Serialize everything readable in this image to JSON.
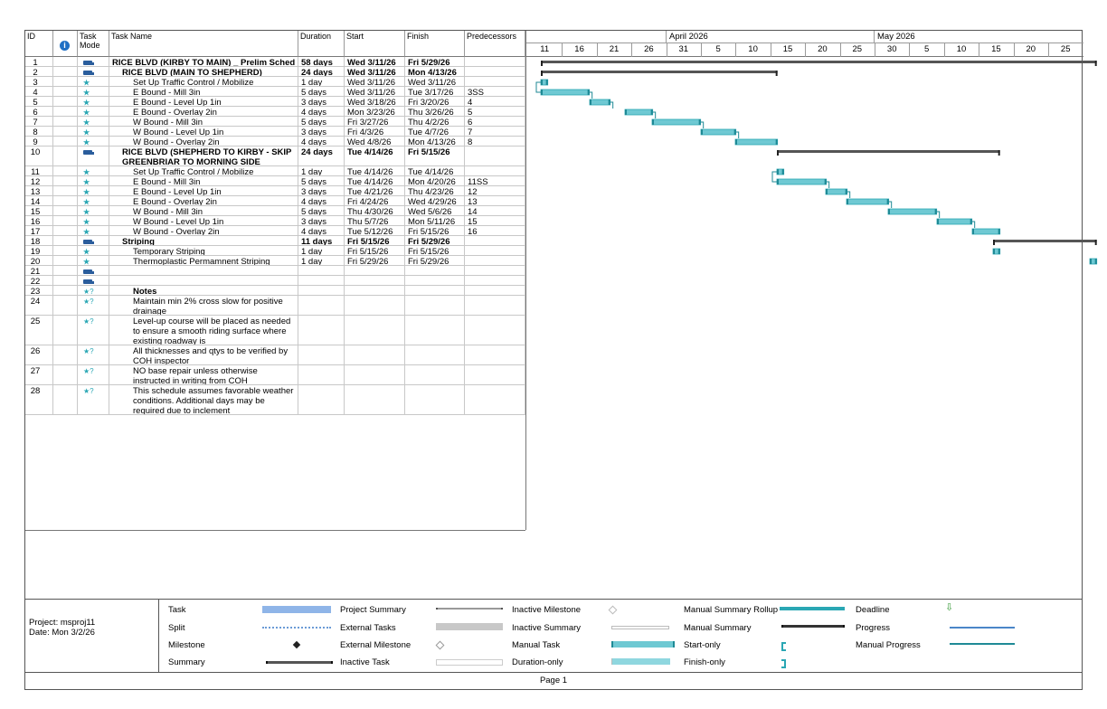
{
  "headers": {
    "id": "ID",
    "info_icon": "info-icon",
    "mode_line1": "Task",
    "mode_line2": "Mode",
    "name": "Task Name",
    "duration": "Duration",
    "start": "Start",
    "finish": "Finish",
    "predecessors": "Predecessors"
  },
  "timescale": {
    "months": [
      "April 2026",
      "May 2026"
    ],
    "days": [
      "11",
      "16",
      "21",
      "26",
      "31",
      "5",
      "10",
      "15",
      "20",
      "25",
      "30",
      "5",
      "10",
      "15",
      "20",
      "25"
    ]
  },
  "tasks": [
    {
      "id": "1",
      "mode": "summary",
      "name": "RICE BLVD (KIRBY TO MAIN) _ Prelim Sched",
      "duration": "58 days",
      "start": "Wed 3/11/26",
      "finish": "Fri 5/29/26",
      "pred": "",
      "bold": true,
      "indent": 0
    },
    {
      "id": "2",
      "mode": "summary",
      "name": "RICE BLVD (MAIN TO SHEPHERD)",
      "duration": "24 days",
      "start": "Wed 3/11/26",
      "finish": "Mon 4/13/26",
      "pred": "",
      "bold": true,
      "indent": 1
    },
    {
      "id": "3",
      "mode": "manual",
      "name": "Set Up Traffic Control / Mobilize",
      "duration": "1 day",
      "start": "Wed 3/11/26",
      "finish": "Wed 3/11/26",
      "pred": "",
      "bold": false,
      "indent": 2
    },
    {
      "id": "4",
      "mode": "manual",
      "name": "E Bound - Mill 3in",
      "duration": "5 days",
      "start": "Wed 3/11/26",
      "finish": "Tue 3/17/26",
      "pred": "3SS",
      "bold": false,
      "indent": 2
    },
    {
      "id": "5",
      "mode": "manual",
      "name": "E Bound - Level Up 1in",
      "duration": "3 days",
      "start": "Wed 3/18/26",
      "finish": "Fri 3/20/26",
      "pred": "4",
      "bold": false,
      "indent": 2
    },
    {
      "id": "6",
      "mode": "manual",
      "name": "E Bound - Overlay 2in",
      "duration": "4 days",
      "start": "Mon 3/23/26",
      "finish": "Thu 3/26/26",
      "pred": "5",
      "bold": false,
      "indent": 2
    },
    {
      "id": "7",
      "mode": "manual",
      "name": "W Bound - Mill 3in",
      "duration": "5 days",
      "start": "Fri 3/27/26",
      "finish": "Thu 4/2/26",
      "pred": "6",
      "bold": false,
      "indent": 2
    },
    {
      "id": "8",
      "mode": "manual",
      "name": "W Bound - Level Up 1in",
      "duration": "3 days",
      "start": "Fri 4/3/26",
      "finish": "Tue 4/7/26",
      "pred": "7",
      "bold": false,
      "indent": 2
    },
    {
      "id": "9",
      "mode": "manual",
      "name": "W Bound - Overlay 2in",
      "duration": "4 days",
      "start": "Wed 4/8/26",
      "finish": "Mon 4/13/26",
      "pred": "8",
      "bold": false,
      "indent": 2
    },
    {
      "id": "10",
      "mode": "summary",
      "name": "RICE BLVD (SHEPHERD TO KIRBY - SKIP GREENBRIAR TO MORNING SIDE BLOCK)",
      "duration": "24 days",
      "start": "Tue 4/14/26",
      "finish": "Fri 5/15/26",
      "pred": "",
      "bold": true,
      "indent": 1
    },
    {
      "id": "11",
      "mode": "manual",
      "name": "Set Up Traffic Control / Mobilize",
      "duration": "1 day",
      "start": "Tue 4/14/26",
      "finish": "Tue 4/14/26",
      "pred": "",
      "bold": false,
      "indent": 2
    },
    {
      "id": "12",
      "mode": "manual",
      "name": "E Bound - Mill 3in",
      "duration": "5 days",
      "start": "Tue 4/14/26",
      "finish": "Mon 4/20/26",
      "pred": "11SS",
      "bold": false,
      "indent": 2
    },
    {
      "id": "13",
      "mode": "manual",
      "name": "E Bound - Level Up 1in",
      "duration": "3 days",
      "start": "Tue 4/21/26",
      "finish": "Thu 4/23/26",
      "pred": "12",
      "bold": false,
      "indent": 2
    },
    {
      "id": "14",
      "mode": "manual",
      "name": "E Bound - Overlay 2in",
      "duration": "4 days",
      "start": "Fri 4/24/26",
      "finish": "Wed 4/29/26",
      "pred": "13",
      "bold": false,
      "indent": 2
    },
    {
      "id": "15",
      "mode": "manual",
      "name": "W Bound - Mill 3in",
      "duration": "5 days",
      "start": "Thu 4/30/26",
      "finish": "Wed 5/6/26",
      "pred": "14",
      "bold": false,
      "indent": 2
    },
    {
      "id": "16",
      "mode": "manual",
      "name": "W Bound - Level Up 1in",
      "duration": "3 days",
      "start": "Thu 5/7/26",
      "finish": "Mon 5/11/26",
      "pred": "15",
      "bold": false,
      "indent": 2
    },
    {
      "id": "17",
      "mode": "manual",
      "name": "W Bound - Overlay 2in",
      "duration": "4 days",
      "start": "Tue 5/12/26",
      "finish": "Fri 5/15/26",
      "pred": "16",
      "bold": false,
      "indent": 2
    },
    {
      "id": "18",
      "mode": "summary",
      "name": "Striping",
      "duration": "11 days",
      "start": "Fri 5/15/26",
      "finish": "Fri 5/29/26",
      "pred": "",
      "bold": true,
      "indent": 1
    },
    {
      "id": "19",
      "mode": "manual",
      "name": "Temporary Striping",
      "duration": "1 day",
      "start": "Fri 5/15/26",
      "finish": "Fri 5/15/26",
      "pred": "",
      "bold": false,
      "indent": 2
    },
    {
      "id": "20",
      "mode": "manual",
      "name": "Thermoplastic Permamnent Striping",
      "duration": "1 day",
      "start": "Fri 5/29/26",
      "finish": "Fri 5/29/26",
      "pred": "",
      "bold": false,
      "indent": 2
    },
    {
      "id": "21",
      "mode": "summary",
      "name": "",
      "duration": "",
      "start": "",
      "finish": "",
      "pred": "",
      "bold": false,
      "indent": 0
    },
    {
      "id": "22",
      "mode": "summary",
      "name": "",
      "duration": "",
      "start": "",
      "finish": "",
      "pred": "",
      "bold": false,
      "indent": 0
    },
    {
      "id": "23",
      "mode": "unsched",
      "name": "Notes",
      "duration": "",
      "start": "",
      "finish": "",
      "pred": "",
      "bold": false,
      "indent": 2,
      "underline": true
    },
    {
      "id": "24",
      "mode": "unsched",
      "name": "Maintain min 2% cross slow for positive drainage",
      "duration": "",
      "start": "",
      "finish": "",
      "pred": "",
      "bold": false,
      "indent": 2
    },
    {
      "id": "25",
      "mode": "unsched",
      "name": "Level-up course will be placed as needed to ensure a smooth riding surface where existing roadway is",
      "duration": "",
      "start": "",
      "finish": "",
      "pred": "",
      "bold": false,
      "indent": 2
    },
    {
      "id": "26",
      "mode": "unsched",
      "name": "All thicknesses and qtys to be verified by COH inspector",
      "duration": "",
      "start": "",
      "finish": "",
      "pred": "",
      "bold": false,
      "indent": 2
    },
    {
      "id": "27",
      "mode": "unsched",
      "name": "NO base repair unless otherwise instructed in writing from COH",
      "duration": "",
      "start": "",
      "finish": "",
      "pred": "",
      "bold": false,
      "indent": 2
    },
    {
      "id": "28",
      "mode": "unsched",
      "name": "This schedule assumes favorable weather conditions. Additional days may be required due to inclement",
      "duration": "",
      "start": "",
      "finish": "",
      "pred": "",
      "bold": false,
      "indent": 2
    }
  ],
  "legend": {
    "project": "Project: msproj11",
    "date": "Date: Mon 3/2/26",
    "items": [
      "Task",
      "Split",
      "Milestone",
      "Summary",
      "Project Summary",
      "External Tasks",
      "External Milestone",
      "Inactive Task",
      "Inactive Milestone",
      "Inactive Summary",
      "Manual Task",
      "Duration-only",
      "Manual Summary Rollup",
      "Manual Summary",
      "Start-only",
      "Finish-only",
      "Deadline",
      "Progress",
      "Manual Progress"
    ]
  },
  "footer": "Page 1",
  "colors": {
    "manual_task": "#6fc9d3",
    "manual_border": "#2aa7b4",
    "summary": "#555555",
    "task": "#8fb5e8"
  }
}
